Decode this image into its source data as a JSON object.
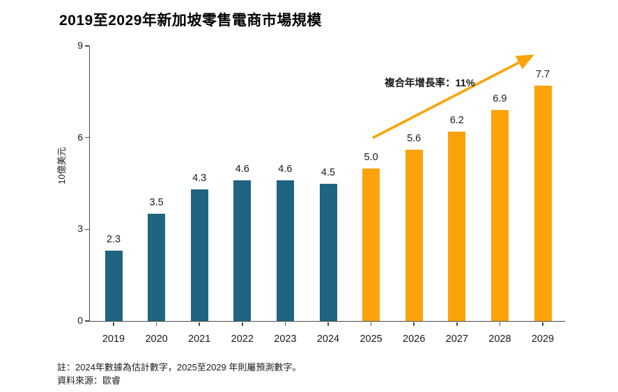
{
  "title": "2019至2029年新加坡零售電商市場規模",
  "chart_data": {
    "type": "bar",
    "categories": [
      "2019",
      "2020",
      "2021",
      "2022",
      "2023",
      "2024",
      "2025",
      "2026",
      "2027",
      "2028",
      "2029"
    ],
    "values": [
      2.3,
      3.5,
      4.3,
      4.6,
      4.6,
      4.5,
      5.0,
      5.6,
      6.2,
      6.9,
      7.7
    ],
    "value_decimals": 1,
    "title": "2019至2029年新加坡零售電商市場規模",
    "xlabel": "",
    "ylabel": "10億美元",
    "ylim": [
      0,
      9
    ],
    "yticks": [
      0,
      3,
      6,
      9
    ],
    "grid": false,
    "legend": "none",
    "forecast_start_index": 6,
    "colors": {
      "historical_bar": "#1F6480",
      "forecast_bar": "#FBA30B",
      "arrow": "#FBA30B",
      "axis": "#4a4a4a"
    },
    "annotation": {
      "label": "複合年增長率：11%"
    }
  },
  "notes": {
    "line1": "註：2024年數據為估計數字，2025至2029 年則屬預測數字。",
    "line2": "資料來源：歐睿"
  }
}
